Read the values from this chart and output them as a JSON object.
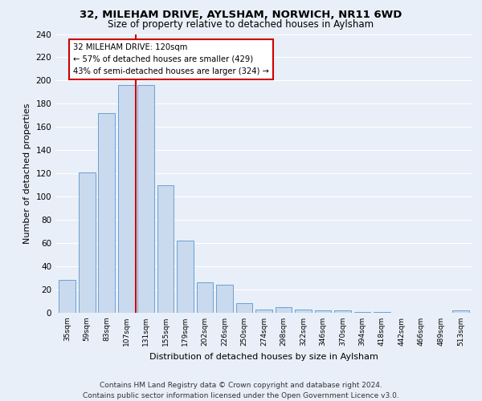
{
  "title1": "32, MILEHAM DRIVE, AYLSHAM, NORWICH, NR11 6WD",
  "title2": "Size of property relative to detached houses in Aylsham",
  "xlabel": "Distribution of detached houses by size in Aylsham",
  "ylabel": "Number of detached properties",
  "categories": [
    "35sqm",
    "59sqm",
    "83sqm",
    "107sqm",
    "131sqm",
    "155sqm",
    "179sqm",
    "202sqm",
    "226sqm",
    "250sqm",
    "274sqm",
    "298sqm",
    "322sqm",
    "346sqm",
    "370sqm",
    "394sqm",
    "418sqm",
    "442sqm",
    "466sqm",
    "489sqm",
    "513sqm"
  ],
  "values": [
    28,
    121,
    172,
    196,
    196,
    110,
    62,
    26,
    24,
    8,
    3,
    5,
    3,
    2,
    2,
    1,
    1,
    0,
    0,
    0,
    2
  ],
  "bar_color": "#c9d9ee",
  "bar_edge_color": "#6ca0d0",
  "vline_color": "#cc0000",
  "annotation_text": "32 MILEHAM DRIVE: 120sqm\n← 57% of detached houses are smaller (429)\n43% of semi-detached houses are larger (324) →",
  "annotation_box_color": "#cc0000",
  "ylim": [
    0,
    240
  ],
  "yticks": [
    0,
    20,
    40,
    60,
    80,
    100,
    120,
    140,
    160,
    180,
    200,
    220,
    240
  ],
  "footer": "Contains HM Land Registry data © Crown copyright and database right 2024.\nContains public sector information licensed under the Open Government Licence v3.0.",
  "background_color": "#e8eff8",
  "title1_fontsize": 9.5,
  "title2_fontsize": 8.5,
  "xlabel_fontsize": 8,
  "ylabel_fontsize": 8,
  "footer_fontsize": 6.5,
  "tick_fontsize": 7.5,
  "xtick_fontsize": 6.5,
  "annot_fontsize": 7.2
}
